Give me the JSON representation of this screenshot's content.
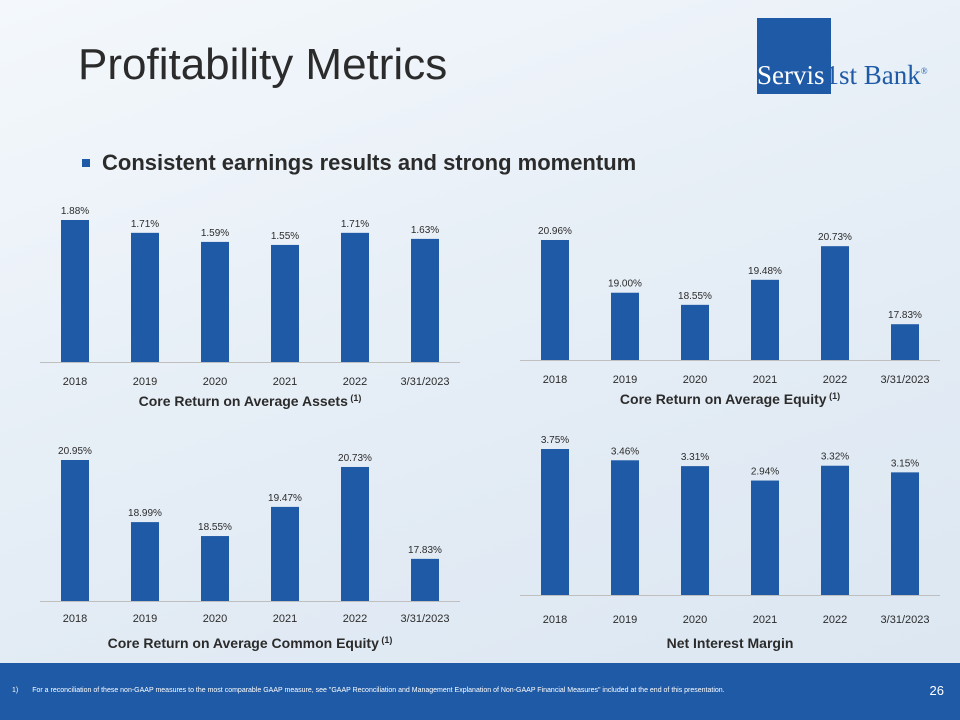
{
  "title": "Profitability Metrics",
  "logo": {
    "part1": "Servis",
    "part2": "1st Bank",
    "reg": "®"
  },
  "bullet": "Consistent earnings results and strong momentum",
  "chart_data": [
    {
      "type": "bar",
      "title": "Core Return on Average Assets",
      "title_sup": "(1)",
      "categories": [
        "2018",
        "2019",
        "2020",
        "2021",
        "2022",
        "3/31/2023"
      ],
      "values": [
        1.88,
        1.71,
        1.59,
        1.55,
        1.71,
        1.63
      ],
      "data_labels": [
        "1.88%",
        "1.71%",
        "1.59%",
        "1.55%",
        "1.71%",
        "1.63%"
      ],
      "ylim": [
        0,
        1.88
      ],
      "color": "#1f5aa6"
    },
    {
      "type": "bar",
      "title": "Core Return on Average Equity",
      "title_sup": "(1)",
      "categories": [
        "2018",
        "2019",
        "2020",
        "2021",
        "2022",
        "3/31/2023"
      ],
      "values": [
        20.96,
        19.0,
        18.55,
        19.48,
        20.73,
        17.83
      ],
      "data_labels": [
        "20.96%",
        "19.00%",
        "18.55%",
        "19.48%",
        "20.73%",
        "17.83%"
      ],
      "ylim": [
        16.5,
        20.96
      ],
      "color": "#1f5aa6"
    },
    {
      "type": "bar",
      "title": "Core Return on Average Common Equity",
      "title_sup": "(1)",
      "categories": [
        "2018",
        "2019",
        "2020",
        "2021",
        "2022",
        "3/31/2023"
      ],
      "values": [
        20.95,
        18.99,
        18.55,
        19.47,
        20.73,
        17.83
      ],
      "data_labels": [
        "20.95%",
        "18.99%",
        "18.55%",
        "19.47%",
        "20.73%",
        "17.83%"
      ],
      "ylim": [
        16.5,
        20.95
      ],
      "color": "#1f5aa6"
    },
    {
      "type": "bar",
      "title": "Net Interest Margin",
      "title_sup": "",
      "categories": [
        "2018",
        "2019",
        "2020",
        "2021",
        "2022",
        "3/31/2023"
      ],
      "values": [
        3.75,
        3.46,
        3.31,
        2.94,
        3.32,
        3.15
      ],
      "data_labels": [
        "3.75%",
        "3.46%",
        "3.31%",
        "2.94%",
        "3.32%",
        "3.15%"
      ],
      "ylim": [
        0,
        3.75
      ],
      "color": "#1f5aa6"
    }
  ],
  "footer": {
    "footnote_number": "1)",
    "footnote_text": "For a reconciliation of these non-GAAP measures to the most comparable GAAP measure, see \"GAAP Reconciliation and Management Explanation of Non-GAAP Financial Measures\" included at the end of this presentation.",
    "page_number": "26"
  }
}
